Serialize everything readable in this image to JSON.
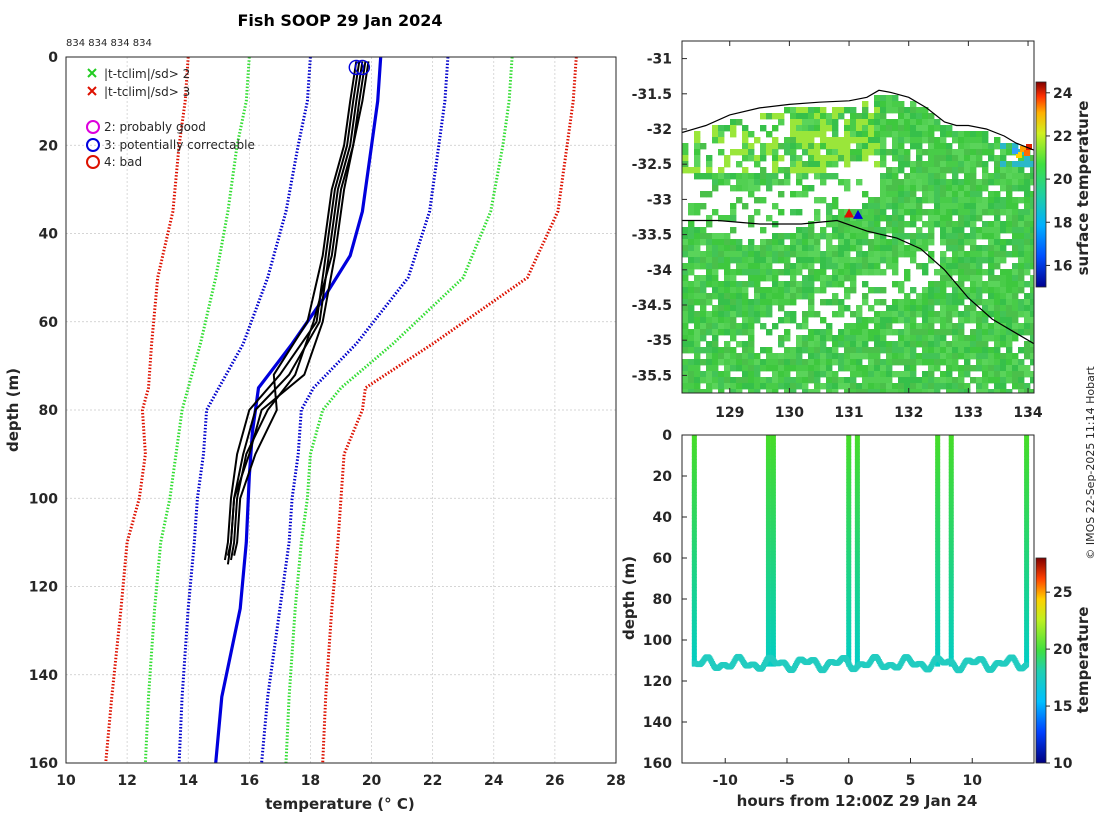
{
  "title": "Fish SOOP 29 Jan 2024",
  "profile_ids_label": "834 834 834 834",
  "credit": "© IMOS 22-Sep-2025 11:14 Hobart",
  "colors": {
    "black": "#000000",
    "blue": "#0000dd",
    "clim_blue": "#0000cc",
    "clim_green": "#33dd33",
    "clim_red": "#dd1100",
    "grid": "#b0b0b0"
  },
  "chart_data": [
    {
      "id": "profile",
      "type": "line",
      "title": "Fish SOOP 29 Jan 2024",
      "xlabel": "temperature (° C)",
      "ylabel": "depth (m)",
      "xlim": [
        10,
        28
      ],
      "ylim": [
        160,
        0
      ],
      "xticks": [
        10,
        12,
        14,
        16,
        18,
        20,
        22,
        24,
        26,
        28
      ],
      "yticks": [
        0,
        20,
        40,
        60,
        80,
        100,
        120,
        140,
        160
      ],
      "grid": true,
      "legend": {
        "placement": "top-left",
        "entries": [
          {
            "marker": "x",
            "color": "#22cc22",
            "label": "|t-tclim|/sd> 2"
          },
          {
            "marker": "x",
            "color": "#dd1100",
            "label": "|t-tclim|/sd> 3"
          },
          {
            "marker": "o",
            "color": "#dd00dd",
            "label": "2: probably good"
          },
          {
            "marker": "o",
            "color": "#0000dd",
            "label": "3: potentially correctable"
          },
          {
            "marker": "o",
            "color": "#dd1100",
            "label": "4: bad"
          }
        ]
      },
      "series": [
        {
          "name": "clim -3sd",
          "color": "#dd1100",
          "style": "dotted",
          "x": [
            14.0,
            13.9,
            13.7,
            13.5,
            13.0,
            12.8,
            12.7,
            12.5,
            12.6,
            12.4,
            12.0,
            11.8,
            11.5,
            11.3
          ],
          "y": [
            0,
            10,
            20,
            35,
            50,
            65,
            75,
            80,
            90,
            100,
            110,
            125,
            145,
            160
          ]
        },
        {
          "name": "clim -2sd",
          "color": "#33dd33",
          "style": "dotted",
          "x": [
            16.0,
            15.9,
            15.6,
            15.3,
            14.9,
            14.4,
            14.0,
            13.8,
            13.6,
            13.4,
            13.1,
            12.9,
            12.7,
            12.6
          ],
          "y": [
            0,
            10,
            20,
            35,
            50,
            65,
            75,
            80,
            90,
            100,
            110,
            125,
            145,
            160
          ]
        },
        {
          "name": "clim -1sd",
          "color": "#0000cc",
          "style": "dotted",
          "x": [
            18.0,
            17.9,
            17.6,
            17.2,
            16.6,
            15.8,
            15.0,
            14.6,
            14.5,
            14.3,
            14.2,
            14.0,
            13.8,
            13.7
          ],
          "y": [
            0,
            10,
            20,
            35,
            50,
            65,
            75,
            80,
            90,
            100,
            110,
            125,
            145,
            160
          ]
        },
        {
          "name": "clim mean",
          "color": "#0000dd",
          "style": "solid",
          "x": [
            20.3,
            20.2,
            20.0,
            19.7,
            19.3,
            18.4,
            17.4,
            16.3,
            16.1,
            16.0,
            15.9,
            15.7,
            15.1,
            14.9
          ],
          "y": [
            0,
            10,
            20,
            35,
            45,
            55,
            65,
            75,
            85,
            95,
            110,
            125,
            145,
            160
          ]
        },
        {
          "name": "clim +1sd",
          "color": "#0000cc",
          "style": "dotted",
          "x": [
            22.5,
            22.4,
            22.2,
            21.9,
            21.2,
            19.5,
            18.1,
            17.7,
            17.6,
            17.4,
            17.3,
            17.0,
            16.6,
            16.4
          ],
          "y": [
            0,
            10,
            20,
            35,
            50,
            65,
            75,
            80,
            90,
            100,
            110,
            125,
            145,
            160
          ]
        },
        {
          "name": "clim +2sd",
          "color": "#33dd33",
          "style": "dotted",
          "x": [
            24.6,
            24.5,
            24.3,
            23.9,
            23.0,
            20.7,
            19.0,
            18.4,
            18.0,
            17.9,
            17.7,
            17.5,
            17.3,
            17.2
          ],
          "y": [
            0,
            10,
            20,
            35,
            50,
            65,
            75,
            80,
            90,
            100,
            110,
            125,
            145,
            160
          ]
        },
        {
          "name": "clim +3sd",
          "color": "#dd1100",
          "style": "dotted",
          "x": [
            26.7,
            26.6,
            26.4,
            26.1,
            25.1,
            22.0,
            19.8,
            19.7,
            19.1,
            19.0,
            18.9,
            18.7,
            18.5,
            18.4
          ],
          "y": [
            0,
            10,
            20,
            35,
            50,
            65,
            75,
            80,
            90,
            100,
            110,
            125,
            145,
            160
          ]
        },
        {
          "name": "profile 1",
          "color": "#000000",
          "style": "solid",
          "x": [
            19.6,
            19.4,
            19.2,
            18.8,
            18.5,
            18.2,
            17.0,
            16.0,
            15.6,
            15.4,
            15.3,
            15.2
          ],
          "y": [
            1,
            10,
            20,
            30,
            45,
            60,
            72,
            80,
            90,
            100,
            110,
            114
          ]
        },
        {
          "name": "profile 2",
          "color": "#000000",
          "style": "solid",
          "x": [
            19.7,
            19.5,
            19.3,
            18.9,
            18.6,
            18.3,
            17.3,
            16.2,
            15.8,
            15.5,
            15.4,
            15.3
          ],
          "y": [
            1,
            10,
            20,
            30,
            45,
            60,
            72,
            80,
            90,
            100,
            110,
            113
          ]
        },
        {
          "name": "profile 3",
          "color": "#000000",
          "style": "solid",
          "x": [
            19.8,
            19.6,
            19.4,
            19.0,
            18.7,
            18.1,
            17.5,
            16.6,
            15.9,
            15.6,
            15.5,
            15.4
          ],
          "y": [
            1,
            10,
            20,
            30,
            45,
            60,
            72,
            80,
            90,
            100,
            110,
            114
          ]
        },
        {
          "name": "profile 4",
          "color": "#000000",
          "style": "solid",
          "x": [
            19.5,
            19.3,
            19.1,
            18.7,
            18.4,
            17.9,
            16.8,
            16.9,
            16.2,
            15.7,
            15.6,
            15.5
          ],
          "y": [
            1,
            10,
            20,
            30,
            45,
            60,
            72,
            80,
            90,
            100,
            110,
            113
          ]
        },
        {
          "name": "profile 5",
          "color": "#000000",
          "style": "solid",
          "x": [
            19.9,
            19.7,
            19.4,
            19.1,
            18.8,
            18.4,
            17.8,
            16.4,
            16.0,
            15.5,
            15.4,
            15.3
          ],
          "y": [
            1,
            10,
            20,
            30,
            45,
            60,
            72,
            80,
            90,
            100,
            110,
            115
          ]
        }
      ],
      "flags": [
        {
          "x": 19.5,
          "y": 1,
          "type": "o",
          "color": "#0000dd",
          "label": "3: potentially correctable"
        },
        {
          "x": 19.7,
          "y": 1,
          "type": "o",
          "color": "#0000dd",
          "label": "3: potentially correctable"
        }
      ]
    },
    {
      "id": "map",
      "type": "heatmap",
      "xticks": [
        129,
        130,
        131,
        132,
        133,
        134
      ],
      "yticks": [
        -31,
        -31.5,
        -32,
        -32.5,
        -33,
        -33.5,
        -34,
        -34.5,
        -35,
        -35.5
      ],
      "xlim": [
        128.2,
        134.1
      ],
      "ylim": [
        -35.75,
        -30.75
      ],
      "colorbar": {
        "label": "surface temperature",
        "range": [
          15,
          24.5
        ],
        "ticks": [
          16,
          18,
          20,
          22,
          24
        ]
      },
      "coastline": {
        "lon": [
          128.2,
          128.6,
          129.0,
          129.5,
          130.0,
          130.5,
          131.0,
          131.3,
          131.5,
          131.7,
          132.0,
          132.3,
          132.6,
          132.8,
          133.0,
          133.3,
          133.6,
          133.8,
          134.1
        ],
        "lat": [
          -32.05,
          -31.95,
          -31.8,
          -31.7,
          -31.65,
          -31.62,
          -31.6,
          -31.55,
          -31.45,
          -31.48,
          -31.55,
          -31.7,
          -31.9,
          -31.95,
          -31.95,
          -32.0,
          -32.1,
          -32.2,
          -32.3
        ]
      },
      "shelf_edge": {
        "lon": [
          128.2,
          128.8,
          129.5,
          130.2,
          130.8,
          131.3,
          131.8,
          132.2,
          132.6,
          133.0,
          133.4,
          133.8,
          134.1
        ],
        "lat": [
          -33.3,
          -33.3,
          -33.35,
          -33.35,
          -33.3,
          -33.45,
          -33.55,
          -33.7,
          -34.0,
          -34.4,
          -34.7,
          -34.9,
          -35.05
        ]
      },
      "stations": [
        {
          "lon": 131.0,
          "lat": -33.2,
          "color": "#dd1100"
        },
        {
          "lon": 131.15,
          "lat": -33.22,
          "color": "#0000dd"
        }
      ]
    },
    {
      "id": "timeseries",
      "type": "scatter",
      "xlabel": "hours from 12:00Z 29 Jan 24",
      "ylabel": "depth (m)",
      "xlim": [
        -13.5,
        15
      ],
      "ylim": [
        160,
        0
      ],
      "xticks": [
        -10,
        -5,
        0,
        5,
        10
      ],
      "yticks": [
        0,
        20,
        40,
        60,
        80,
        100,
        120,
        140,
        160
      ],
      "colorbar": {
        "label": "temperature",
        "range": [
          10,
          28
        ],
        "ticks": [
          10,
          15,
          20,
          25
        ]
      },
      "cast_times": [
        -12.5,
        -6.5,
        -6.1,
        0.0,
        0.7,
        7.2,
        8.3,
        14.4
      ],
      "bottom_depth_range": [
        110,
        115
      ]
    }
  ]
}
